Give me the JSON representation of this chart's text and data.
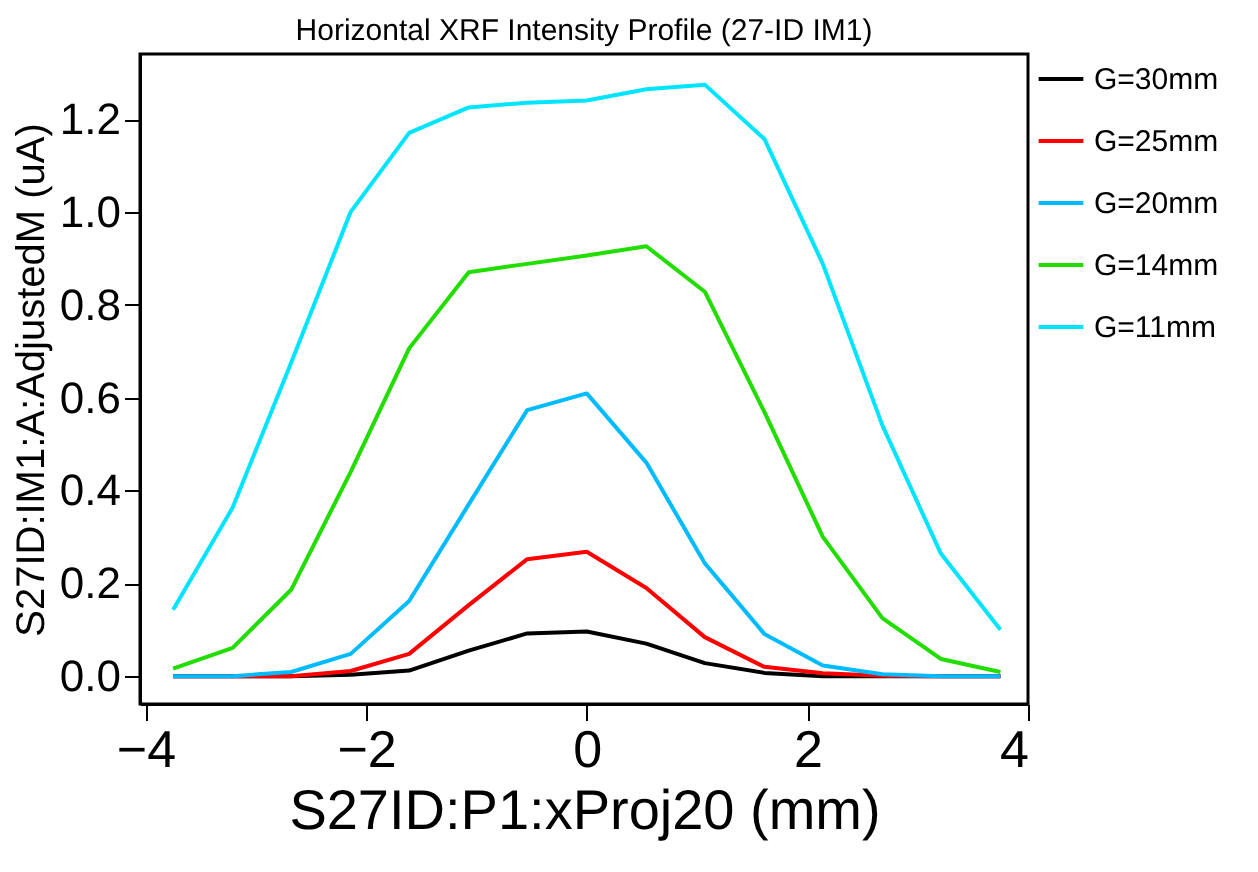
{
  "chart_data": {
    "type": "line",
    "title": "Horizontal XRF Intensity Profile (27-ID IM1)",
    "xlabel": "S27ID:P1:xProj20 (mm)",
    "ylabel": "S27ID:IM1:A:AdjustedM (uA)",
    "x": [
      -3.75,
      -3.21,
      -2.68,
      -2.14,
      -1.61,
      -1.07,
      -0.54,
      0,
      0.54,
      1.07,
      1.61,
      2.14,
      2.68,
      3.21,
      3.75
    ],
    "series": [
      {
        "name": "G=30mm",
        "color": "#000000",
        "values": [
          0,
          0,
          0,
          0.003,
          0.012,
          0.055,
          0.092,
          0.096,
          0.07,
          0.028,
          0.007,
          0,
          0,
          0,
          0
        ]
      },
      {
        "name": "G=25mm",
        "color": "#ff0000",
        "values": [
          0,
          0,
          0,
          0.011,
          0.048,
          0.153,
          0.252,
          0.268,
          0.19,
          0.084,
          0.02,
          0.006,
          0.001,
          0,
          0
        ]
      },
      {
        "name": "G=20mm",
        "color": "#00bbff",
        "values": [
          0,
          0,
          0.009,
          0.048,
          0.162,
          0.37,
          0.573,
          0.609,
          0.46,
          0.243,
          0.091,
          0.023,
          0.004,
          0,
          0
        ]
      },
      {
        "name": "G=14mm",
        "color": "#22dd00",
        "values": [
          0.016,
          0.061,
          0.186,
          0.44,
          0.706,
          0.87,
          0.888,
          0.906,
          0.926,
          0.828,
          0.569,
          0.3,
          0.125,
          0.037,
          0.009
        ]
      },
      {
        "name": "G=11mm",
        "color": "#00e5ff",
        "values": [
          0.143,
          0.363,
          0.675,
          1.0,
          1.17,
          1.225,
          1.235,
          1.24,
          1.264,
          1.274,
          1.157,
          0.888,
          0.54,
          0.264,
          0.1
        ]
      }
    ],
    "xlim": [
      -4.05,
      4.0
    ],
    "xticks": [
      -4,
      -2,
      0,
      2,
      4
    ],
    "ylim": [
      -0.06,
      1.34
    ],
    "yticks": [
      {
        "value": 0,
        "label": "0.0"
      },
      {
        "value": 0.2,
        "label": "0.2"
      },
      {
        "value": 0.4,
        "label": "0.4"
      },
      {
        "value": 0.6,
        "label": "0.6"
      },
      {
        "value": 0.8,
        "label": "0.8"
      },
      {
        "value": 1.0,
        "label": "1.0"
      },
      {
        "value": 1.2,
        "label": "1.2"
      }
    ],
    "legend": "right",
    "grid": false,
    "marker": "none",
    "line_style": "solid"
  }
}
